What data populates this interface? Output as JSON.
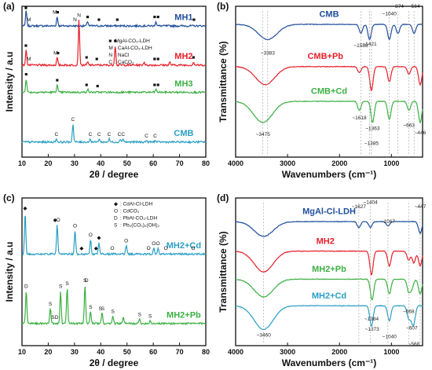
{
  "chart_data": [
    {
      "panel": "(a)",
      "type": "line",
      "xlabel": "2θ / degree",
      "ylabel": "Intensity / a.u",
      "xlim": [
        10,
        80
      ],
      "xticks": [
        10,
        20,
        30,
        40,
        50,
        60,
        70,
        80
      ],
      "legend": {
        "placement": "right-middle",
        "entries": [
          {
            "symbol": "■",
            "text": "MgAl-CO₃-LDH"
          },
          {
            "symbol": "M",
            "text": ": CaAl-CO₃-LDH"
          },
          {
            "symbol": "N",
            "text": ": NaCl"
          },
          {
            "symbol": "C",
            "text": ": CaCO₃"
          }
        ]
      },
      "series": [
        {
          "name": "MH1",
          "color": "#1f4e9c",
          "base": 0.87,
          "peaks": [
            [
              11.6,
              0.1
            ],
            [
              23.4,
              0.06
            ],
            [
              35,
              0.03
            ],
            [
              61,
              0.03
            ]
          ],
          "markers": [
            {
              "x": 11.5,
              "s": "■"
            },
            {
              "x": 12.6,
              "s": "M"
            },
            {
              "x": 22.5,
              "s": "M"
            },
            {
              "x": 23.6,
              "s": "■"
            },
            {
              "x": 30.2,
              "s": "N"
            },
            {
              "x": 35,
              "s": "■"
            },
            {
              "x": 39.3,
              "s": "■"
            },
            {
              "x": 46.3,
              "s": "■"
            },
            {
              "x": 60.5,
              "s": "■"
            },
            {
              "x": 61.8,
              "s": "■"
            },
            {
              "x": 75.5,
              "s": "■"
            }
          ]
        },
        {
          "name": "MH2",
          "color": "#e8202a",
          "base": 0.61,
          "peaks": [
            [
              11.6,
              0.1
            ],
            [
              23.4,
              0.05
            ],
            [
              31.7,
              0.3
            ],
            [
              45.5,
              0.13
            ],
            [
              35,
              0.02
            ],
            [
              56.5,
              0.02
            ],
            [
              66.3,
              0.02
            ],
            [
              75.3,
              0.02
            ]
          ],
          "markers": [
            {
              "x": 11.5,
              "s": "■"
            },
            {
              "x": 12.6,
              "s": "M"
            },
            {
              "x": 22.8,
              "s": "M"
            },
            {
              "x": 23.7,
              "s": "■"
            },
            {
              "x": 31.7,
              "s": "N"
            },
            {
              "x": 34.6,
              "s": "■"
            },
            {
              "x": 38.5,
              "s": "■"
            },
            {
              "x": 45.5,
              "s": "■"
            },
            {
              "x": 60.5,
              "s": "■"
            },
            {
              "x": 61.8,
              "s": "■"
            },
            {
              "x": 75.3,
              "s": "■"
            }
          ]
        },
        {
          "name": "MH3",
          "color": "#3cb043",
          "base": 0.43,
          "peaks": [
            [
              11.6,
              0.09
            ],
            [
              23.4,
              0.05
            ],
            [
              35,
              0.02
            ],
            [
              61,
              0.02
            ]
          ],
          "markers": [
            {
              "x": 11.6,
              "s": "■"
            },
            {
              "x": 23.4,
              "s": "■"
            },
            {
              "x": 34.6,
              "s": "■"
            },
            {
              "x": 38.8,
              "s": "■"
            },
            {
              "x": 60.5,
              "s": "■"
            },
            {
              "x": 61.8,
              "s": "■"
            }
          ]
        },
        {
          "name": "CMB",
          "color": "#2a9fc4",
          "base": 0.1,
          "peaks": [
            [
              29.4,
              0.12
            ],
            [
              23.1,
              0.02
            ],
            [
              36,
              0.02
            ],
            [
              39.4,
              0.02
            ],
            [
              43.2,
              0.02
            ],
            [
              47.5,
              0.02
            ],
            [
              48.5,
              0.02
            ],
            [
              57.4,
              0.01
            ],
            [
              60.7,
              0.01
            ]
          ],
          "markers": [
            {
              "x": 23.1,
              "s": "C"
            },
            {
              "x": 29.4,
              "s": "C"
            },
            {
              "x": 36,
              "s": "C"
            },
            {
              "x": 39.4,
              "s": "C"
            },
            {
              "x": 43.2,
              "s": "C"
            },
            {
              "x": 47.1,
              "s": "C"
            },
            {
              "x": 48.5,
              "s": "C"
            },
            {
              "x": 57.4,
              "s": "C"
            },
            {
              "x": 60.7,
              "s": "C"
            }
          ]
        }
      ]
    },
    {
      "panel": "(b)",
      "type": "line",
      "xlabel": "Wavenumbers (cm⁻¹)",
      "ylabel": "Transmittance (%)",
      "xlim": [
        4000,
        400
      ],
      "xticks": [
        4000,
        3000,
        2000,
        1000
      ],
      "series": [
        {
          "name": "CMB",
          "color": "#1f4e9c",
          "base": 0.88,
          "dips": [
            [
              3383,
              0.1
            ],
            [
              1588,
              0.06
            ],
            [
              1421,
              0.1
            ],
            [
              1040,
              0.1
            ],
            [
              874,
              0.06
            ],
            [
              564,
              0.06
            ]
          ]
        },
        {
          "name": "CMB+Pb",
          "color": "#e8202a",
          "base": 0.6,
          "dips": [
            [
              3430,
              0.12
            ],
            [
              1618,
              0.04
            ],
            [
              1385,
              0.16
            ],
            [
              1040,
              0.1
            ],
            [
              663,
              0.05
            ],
            [
              446,
              0.12
            ]
          ]
        },
        {
          "name": "CMB+Cd",
          "color": "#3cb043",
          "base": 0.37,
          "dips": [
            [
              3475,
              0.14
            ],
            [
              1618,
              0.06
            ],
            [
              1363,
              0.14
            ],
            [
              1040,
              0.12
            ],
            [
              663,
              0.06
            ],
            [
              446,
              0.14
            ]
          ]
        }
      ],
      "annotations": [
        {
          "text": "~3383",
          "x": 3383,
          "y": 0.68
        },
        {
          "text": "~1588",
          "x": 1588,
          "y": 0.73
        },
        {
          "text": "~1421",
          "x": 1421,
          "y": 0.74
        },
        {
          "text": "~1040",
          "x": 1040,
          "y": 0.94
        },
        {
          "text": "~874",
          "x": 874,
          "y": 0.99
        },
        {
          "text": "~564",
          "x": 564,
          "y": 0.99
        },
        {
          "text": "~3475",
          "x": 3475,
          "y": 0.14
        },
        {
          "text": "~1618",
          "x": 1618,
          "y": 0.25
        },
        {
          "text": "~1385",
          "x": 1385,
          "y": 0.08
        },
        {
          "text": "~1363",
          "x": 1363,
          "y": 0.18
        },
        {
          "text": "~663",
          "x": 663,
          "y": 0.2
        },
        {
          "text": "~446",
          "x": 446,
          "y": 0.15
        }
      ]
    },
    {
      "panel": "(c)",
      "type": "line",
      "xlabel": "2θ / degree",
      "ylabel": "Intensity / a.u",
      "xlim": [
        10,
        80
      ],
      "xticks": [
        10,
        20,
        30,
        40,
        50,
        60,
        70,
        80
      ],
      "legend": {
        "placement": "top-right",
        "entries": [
          {
            "symbol": "◆",
            "text": ": CdAl-Cl-LDH"
          },
          {
            "symbol": "O",
            "text": ": CdCO₃"
          },
          {
            "symbol": "D",
            "text": ": PbAl-CO₃-LDH"
          },
          {
            "symbol": "S",
            "text": ": Pb₃(CO₃)₂(OH)₂"
          }
        ]
      },
      "series": [
        {
          "name": "MH2+Cd",
          "color": "#2a9fc4",
          "base": 0.62,
          "peaks": [
            [
              11.2,
              0.28
            ],
            [
              23.4,
              0.2
            ],
            [
              30.2,
              0.16
            ],
            [
              36.1,
              0.1
            ],
            [
              39.3,
              0.08
            ],
            [
              49.7,
              0.06
            ],
            [
              60.2,
              0.04
            ],
            [
              61.8,
              0.04
            ]
          ],
          "markers": [
            {
              "x": 11.2,
              "s": "◆"
            },
            {
              "x": 22.6,
              "s": "◆"
            },
            {
              "x": 23.8,
              "s": "O"
            },
            {
              "x": 30.2,
              "s": "O"
            },
            {
              "x": 32.7,
              "s": "◆"
            },
            {
              "x": 36.1,
              "s": "O"
            },
            {
              "x": 38.2,
              "s": "◆"
            },
            {
              "x": 39.3,
              "s": "◆"
            },
            {
              "x": 44.4,
              "s": "O"
            },
            {
              "x": 49.7,
              "s": "O"
            },
            {
              "x": 58.2,
              "s": "O"
            },
            {
              "x": 60.2,
              "s": "O"
            },
            {
              "x": 61.8,
              "s": "O"
            },
            {
              "x": 64.8,
              "s": "O"
            },
            {
              "x": 75.2,
              "s": "O"
            }
          ]
        },
        {
          "name": "MH2+Pb",
          "color": "#3cb043",
          "base": 0.15,
          "peaks": [
            [
              11.6,
              0.22
            ],
            [
              20.8,
              0.1
            ],
            [
              24.7,
              0.22
            ],
            [
              27.2,
              0.24
            ],
            [
              34,
              0.26
            ],
            [
              36.1,
              0.08
            ],
            [
              40.5,
              0.07
            ],
            [
              44.6,
              0.05
            ],
            [
              48.6,
              0.04
            ],
            [
              54.8,
              0.03
            ],
            [
              58.8,
              0.02
            ]
          ],
          "markers": [
            {
              "x": 11.6,
              "s": "D"
            },
            {
              "x": 20.8,
              "s": "S"
            },
            {
              "x": 21.8,
              "s": "S"
            },
            {
              "x": 23.2,
              "s": "D"
            },
            {
              "x": 24.7,
              "s": "S"
            },
            {
              "x": 27.2,
              "s": "S"
            },
            {
              "x": 34,
              "s": "S"
            },
            {
              "x": 34.6,
              "s": "D"
            },
            {
              "x": 36.1,
              "s": "S"
            },
            {
              "x": 39.8,
              "s": "S"
            },
            {
              "x": 40.8,
              "s": "S"
            },
            {
              "x": 44.6,
              "s": "S"
            },
            {
              "x": 54.8,
              "s": "S"
            },
            {
              "x": 58.8,
              "s": "S"
            }
          ]
        }
      ]
    },
    {
      "panel": "(d)",
      "type": "line",
      "xlabel": "Wavenumbers (cm⁻¹)",
      "ylabel": "Transmittance (%)",
      "xlim": [
        4000,
        400
      ],
      "xticks": [
        4000,
        3000,
        2000,
        1000
      ],
      "series": [
        {
          "name": "MgAl-Cl-LDH",
          "color": "#1f4e9c",
          "base": 0.84,
          "dips": [
            [
              3460,
              0.1
            ],
            [
              1627,
              0.04
            ],
            [
              1404,
              0.04
            ],
            [
              1067,
              0.03
            ],
            [
              447,
              0.08
            ]
          ]
        },
        {
          "name": "MH2",
          "color": "#e8202a",
          "base": 0.64,
          "dips": [
            [
              3460,
              0.14
            ],
            [
              1384,
              0.16
            ],
            [
              1040,
              0.1
            ],
            [
              668,
              0.06
            ],
            [
              568,
              0.08
            ],
            [
              447,
              0.1
            ]
          ]
        },
        {
          "name": "MH2+Pb",
          "color": "#3cb043",
          "base": 0.45,
          "dips": [
            [
              3460,
              0.12
            ],
            [
              1373,
              0.14
            ],
            [
              1040,
              0.1
            ],
            [
              668,
              0.08
            ],
            [
              607,
              0.06
            ],
            [
              447,
              0.1
            ]
          ]
        },
        {
          "name": "MH2+Cd",
          "color": "#2a9fc4",
          "base": 0.27,
          "dips": [
            [
              3460,
              0.16
            ],
            [
              1384,
              0.14
            ],
            [
              1040,
              0.1
            ],
            [
              668,
              0.08
            ],
            [
              607,
              0.06
            ],
            [
              568,
              0.1
            ]
          ]
        }
      ],
      "annotations": [
        {
          "text": "~1627",
          "x": 1627,
          "y": 0.93
        },
        {
          "text": "~1404",
          "x": 1404,
          "y": 0.96
        },
        {
          "text": "~1067",
          "x": 1067,
          "y": 0.83
        },
        {
          "text": "~447",
          "x": 447,
          "y": 0.93
        },
        {
          "text": "~1384",
          "x": 1384,
          "y": 0.17
        },
        {
          "text": "~1373",
          "x": 1373,
          "y": 0.1
        },
        {
          "text": "~1040",
          "x": 1040,
          "y": 0.05
        },
        {
          "text": "~668",
          "x": 668,
          "y": 0.22
        },
        {
          "text": "~607",
          "x": 607,
          "y": 0.11
        },
        {
          "text": "~3460",
          "x": 3460,
          "y": 0.06
        },
        {
          "text": "~568",
          "x": 568,
          "y": 0.0
        }
      ]
    }
  ]
}
